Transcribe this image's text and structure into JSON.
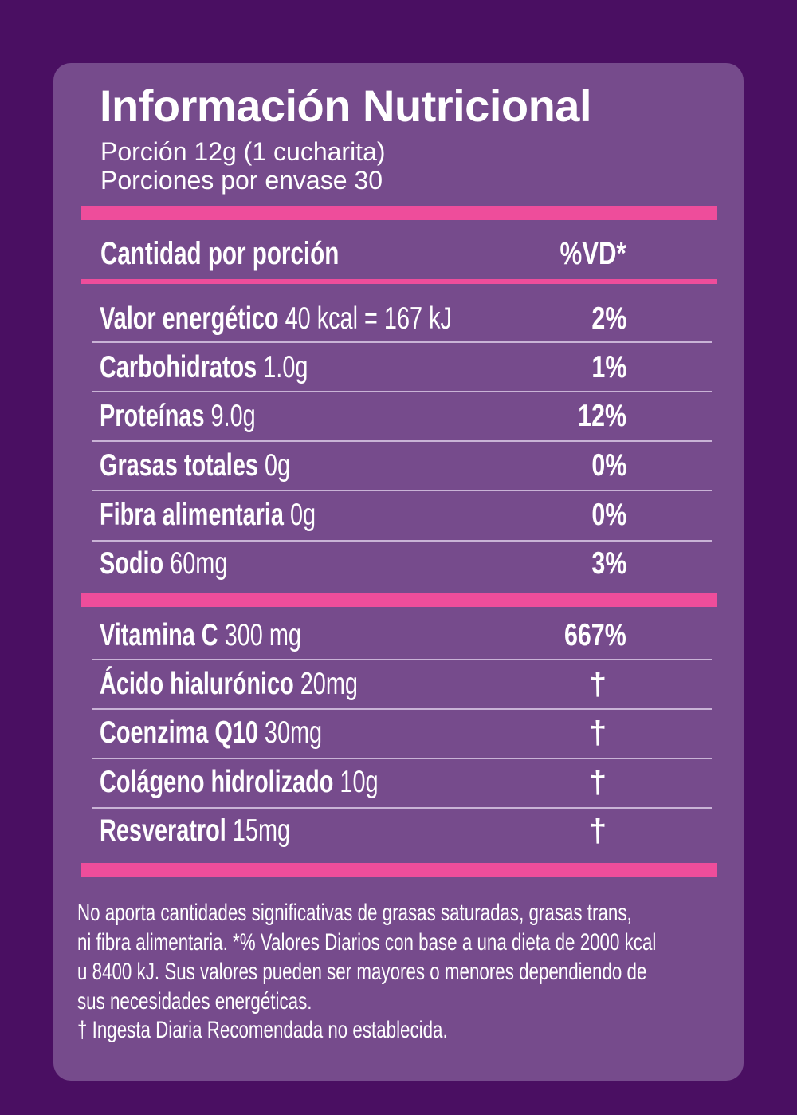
{
  "colors": {
    "background": "#4a0f62",
    "panel": "#764b8c",
    "accent_bars": "#ee4d9b",
    "divider": "#c9b3d6",
    "text": "#ffffff"
  },
  "title": "Información Nutricional",
  "serving": "Porción 12g (1 cucharita)",
  "servings_per_container": "Porciones por envase 30",
  "header": {
    "amount": "Cantidad por porción",
    "dv": "%VD*"
  },
  "nutrients": [
    {
      "name": "Valor energético",
      "amount": "40 kcal = 167 kJ",
      "dv": "2%"
    },
    {
      "name": "Carbohidratos",
      "amount": "1.0g",
      "dv": "1%"
    },
    {
      "name": "Proteínas",
      "amount": "9.0g",
      "dv": "12%"
    },
    {
      "name": "Grasas totales",
      "amount": "0g",
      "dv": "0%"
    },
    {
      "name": "Fibra alimentaria",
      "amount": "0g",
      "dv": "0%"
    },
    {
      "name": "Sodio",
      "amount": "60mg",
      "dv": "3%"
    }
  ],
  "others": [
    {
      "name": "Vitamina C",
      "amount": "300 mg",
      "dv": "667%"
    },
    {
      "name": "Ácido hialurónico",
      "amount": "20mg",
      "dv": "†"
    },
    {
      "name": "Coenzima Q10",
      "amount": "30mg",
      "dv": "†"
    },
    {
      "name": "Colágeno hidrolizado",
      "amount": "10g",
      "dv": "†"
    },
    {
      "name": "Resveratrol",
      "amount": "15mg",
      "dv": "†"
    }
  ],
  "footnote": [
    "No aporta cantidades significativas de grasas saturadas, grasas trans,",
    "ni fibra alimentaria. *% Valores Diarios con base a una dieta de 2000 kcal",
    "u 8400 kJ. Sus valores pueden ser mayores o menores dependiendo de",
    "sus necesidades energéticas.",
    "† Ingesta Diaria Recomendada no establecida."
  ]
}
